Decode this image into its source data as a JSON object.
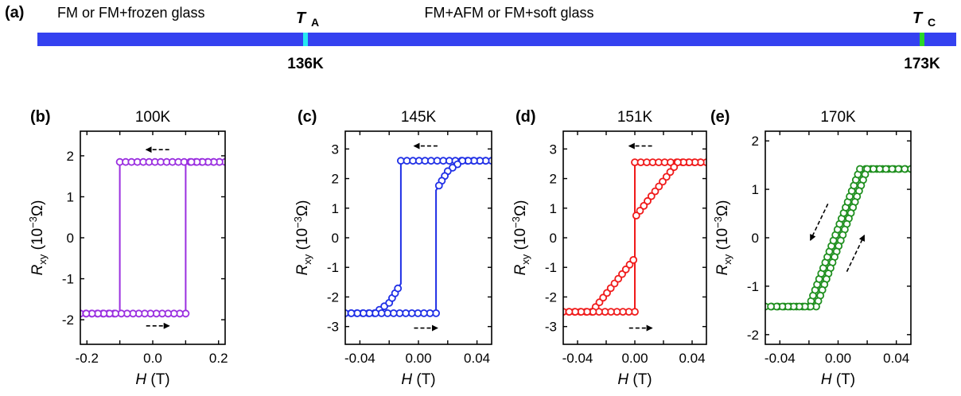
{
  "timeline": {
    "panel_label": "(a)",
    "left_region_label": "FM or FM+frozen glass",
    "right_region_label": "FM+AFM or FM+soft glass",
    "bar_color": "#3441f0",
    "markers": [
      {
        "symbol": "T",
        "subscript": "A",
        "value_label": "136K",
        "temperature": 136,
        "color": "#26e8f0"
      },
      {
        "symbol": "T",
        "subscript": "C",
        "value_label": "173K",
        "temperature": 173,
        "color": "#2ad62a"
      }
    ]
  },
  "axis_titles": {
    "x_symbol": "H",
    "x_unit": " (T)",
    "y_symbol": "R",
    "y_sub": "xy",
    "y_unit_pre": " (10",
    "y_unit_sup": "−3",
    "y_unit_post": "Ω)"
  },
  "chart_data": [
    {
      "type": "line",
      "panel_label": "(b)",
      "title": "100K",
      "color": "#9b30e0",
      "xlim": [
        -0.22,
        0.22
      ],
      "ylim": [
        -2.6,
        2.6
      ],
      "xticks": [
        -0.2,
        -0.1,
        0.0,
        0.1,
        0.2
      ],
      "xtick_labels": [
        "-0.2",
        "",
        "0.0",
        "",
        "0.2"
      ],
      "yticks": [
        -2,
        -1,
        0,
        1,
        2
      ],
      "ytick_labels": [
        "-2",
        "-1",
        "0",
        "1",
        "2"
      ],
      "series": [
        {
          "x": [
            -0.22,
            -0.1,
            -0.1,
            0.22
          ],
          "y": [
            -1.85,
            -1.85,
            1.85,
            1.85
          ],
          "markers": "low-right-high-left"
        },
        {
          "x": [
            0.22,
            0.1,
            0.1,
            -0.22
          ],
          "y": [
            1.85,
            1.85,
            -1.85,
            -1.85
          ],
          "markers": "low-right-high-left"
        }
      ],
      "arrows": [
        {
          "x1": 0.05,
          "y1": 2.15,
          "x2": -0.02,
          "y2": 2.15
        },
        {
          "x1": -0.02,
          "y1": -2.15,
          "x2": 0.05,
          "y2": -2.15
        }
      ]
    },
    {
      "type": "line",
      "panel_label": "(c)",
      "title": "145K",
      "color": "#1f2fe6",
      "xlim": [
        -0.05,
        0.05
      ],
      "ylim": [
        -3.6,
        3.6
      ],
      "xticks": [
        -0.04,
        -0.02,
        0.0,
        0.02,
        0.04
      ],
      "xtick_labels": [
        "-0.04",
        "",
        "0.00",
        "",
        "0.04"
      ],
      "yticks": [
        -3,
        -2,
        -1,
        0,
        1,
        2,
        3
      ],
      "ytick_labels": [
        "-3",
        "-2",
        "-1",
        "0",
        "1",
        "2",
        "3"
      ],
      "series": [
        {
          "x": [
            -0.05,
            -0.03,
            -0.02,
            -0.012,
            -0.012,
            0.05
          ],
          "y": [
            -2.55,
            -2.55,
            -2.2,
            -1.55,
            2.6,
            2.6
          ]
        },
        {
          "x": [
            0.05,
            0.03,
            0.02,
            0.012,
            0.012,
            -0.05
          ],
          "y": [
            2.6,
            2.6,
            2.25,
            1.6,
            -2.55,
            -2.55
          ]
        }
      ],
      "arrows": [
        {
          "x1": 0.013,
          "y1": 3.1,
          "x2": -0.003,
          "y2": 3.1
        },
        {
          "x1": -0.003,
          "y1": -3.05,
          "x2": 0.013,
          "y2": -3.05
        }
      ]
    },
    {
      "type": "line",
      "panel_label": "(d)",
      "title": "151K",
      "color": "#f01a1a",
      "xlim": [
        -0.05,
        0.05
      ],
      "ylim": [
        -3.6,
        3.6
      ],
      "xticks": [
        -0.04,
        -0.02,
        0.0,
        0.02,
        0.04
      ],
      "xtick_labels": [
        "-0.04",
        "",
        "0.00",
        "",
        "0.04"
      ],
      "yticks": [
        -3,
        -2,
        -1,
        0,
        1,
        2,
        3
      ],
      "ytick_labels": [
        "-3",
        "-2",
        "-1",
        "0",
        "1",
        "2",
        "3"
      ],
      "series": [
        {
          "x": [
            -0.05,
            -0.03,
            -0.001,
            0.0,
            0.0,
            0.05
          ],
          "y": [
            -2.5,
            -2.5,
            -0.75,
            -0.8,
            2.55,
            2.55
          ]
        },
        {
          "x": [
            0.05,
            0.03,
            0.001,
            0.0,
            0.0,
            -0.05
          ],
          "y": [
            2.55,
            2.55,
            0.75,
            0.8,
            -2.5,
            -2.5
          ]
        }
      ],
      "arrows": [
        {
          "x1": 0.012,
          "y1": 3.1,
          "x2": -0.004,
          "y2": 3.1
        },
        {
          "x1": -0.004,
          "y1": -3.05,
          "x2": 0.012,
          "y2": -3.05
        }
      ]
    },
    {
      "type": "line",
      "panel_label": "(e)",
      "title": "170K",
      "color": "#1f8f1f",
      "xlim": [
        -0.05,
        0.05
      ],
      "ylim": [
        -2.2,
        2.2
      ],
      "xticks": [
        -0.04,
        -0.02,
        0.0,
        0.02,
        0.04
      ],
      "xtick_labels": [
        "-0.04",
        "",
        "0.00",
        "",
        "0.04"
      ],
      "yticks": [
        -2,
        -1,
        0,
        1,
        2
      ],
      "ytick_labels": [
        "-2",
        "-1",
        "0",
        "1",
        "2"
      ],
      "series": [
        {
          "x": [
            -0.05,
            -0.02,
            0.015,
            0.05
          ],
          "y": [
            -1.42,
            -1.42,
            1.42,
            1.42
          ]
        },
        {
          "x": [
            0.05,
            0.02,
            -0.015,
            -0.05
          ],
          "y": [
            1.42,
            1.42,
            -1.42,
            -1.42
          ]
        }
      ],
      "arrows": [
        {
          "x1": -0.007,
          "y1": 0.7,
          "x2": -0.019,
          "y2": -0.05
        },
        {
          "x1": 0.006,
          "y1": -0.7,
          "x2": 0.018,
          "y2": 0.05
        }
      ]
    }
  ]
}
